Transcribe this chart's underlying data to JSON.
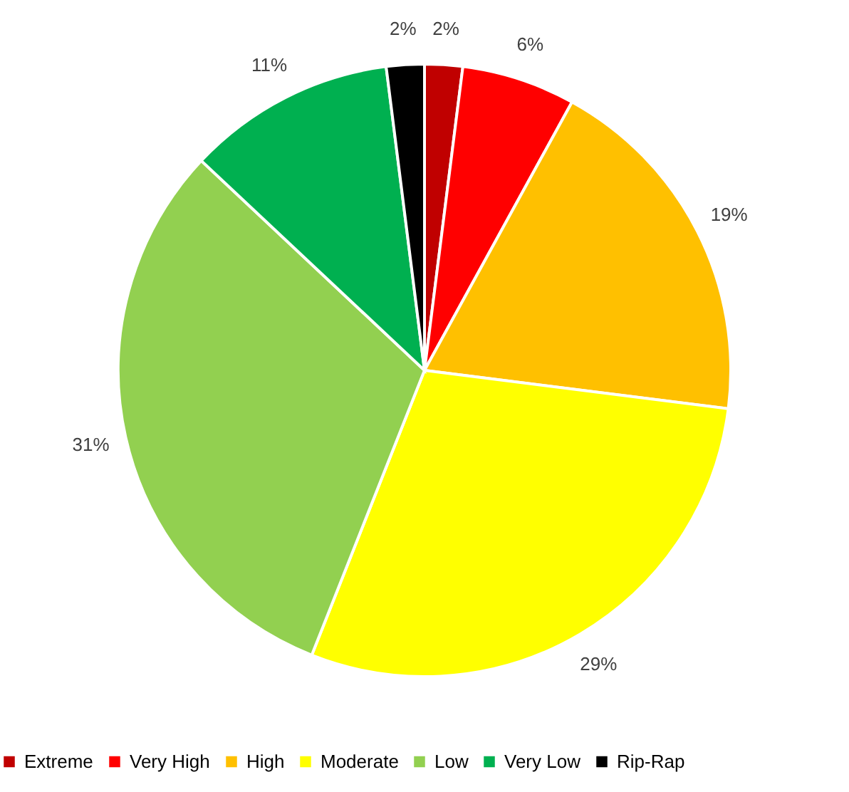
{
  "chart_data": {
    "type": "pie",
    "categories": [
      "Extreme",
      "Very High",
      "High",
      "Moderate",
      "Low",
      "Very Low",
      "Rip-Rap"
    ],
    "values": [
      2,
      6,
      19,
      29,
      31,
      11,
      2
    ],
    "colors": [
      "#c00000",
      "#ff0000",
      "#ffc000",
      "#ffff00",
      "#92d050",
      "#00b050",
      "#000000"
    ],
    "value_labels": [
      "2%",
      "6%",
      "19%",
      "29%",
      "31%",
      "11%",
      "2%"
    ],
    "legend": "bottom"
  }
}
